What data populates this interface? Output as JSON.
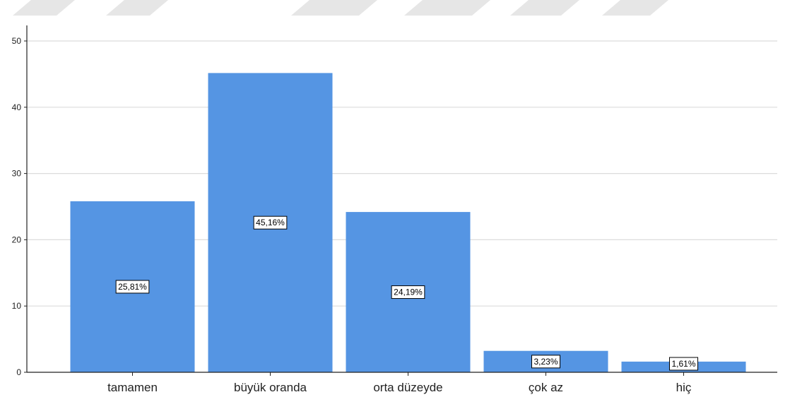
{
  "chart_data": {
    "type": "bar",
    "categories": [
      "tamamen",
      "büyük oranda",
      "orta düzeyde",
      "çok az",
      "hiç"
    ],
    "values": [
      25.81,
      45.16,
      24.19,
      3.23,
      1.61
    ],
    "data_labels": [
      "25,81%",
      "45,16%",
      "24,19%",
      "3,23%",
      "1,61%"
    ],
    "title": "",
    "xlabel": "",
    "ylabel": "",
    "ylim": [
      0,
      50
    ],
    "yticks": [
      0,
      10,
      20,
      30,
      40,
      50
    ],
    "ytick_labels": [
      "0",
      "10",
      "20",
      "30",
      "40",
      "50"
    ],
    "grid": true,
    "colors": {
      "bar": "#5595e3",
      "grid": "#dcdcdc",
      "axis": "#222222",
      "decor": "#e6e6e6"
    }
  }
}
